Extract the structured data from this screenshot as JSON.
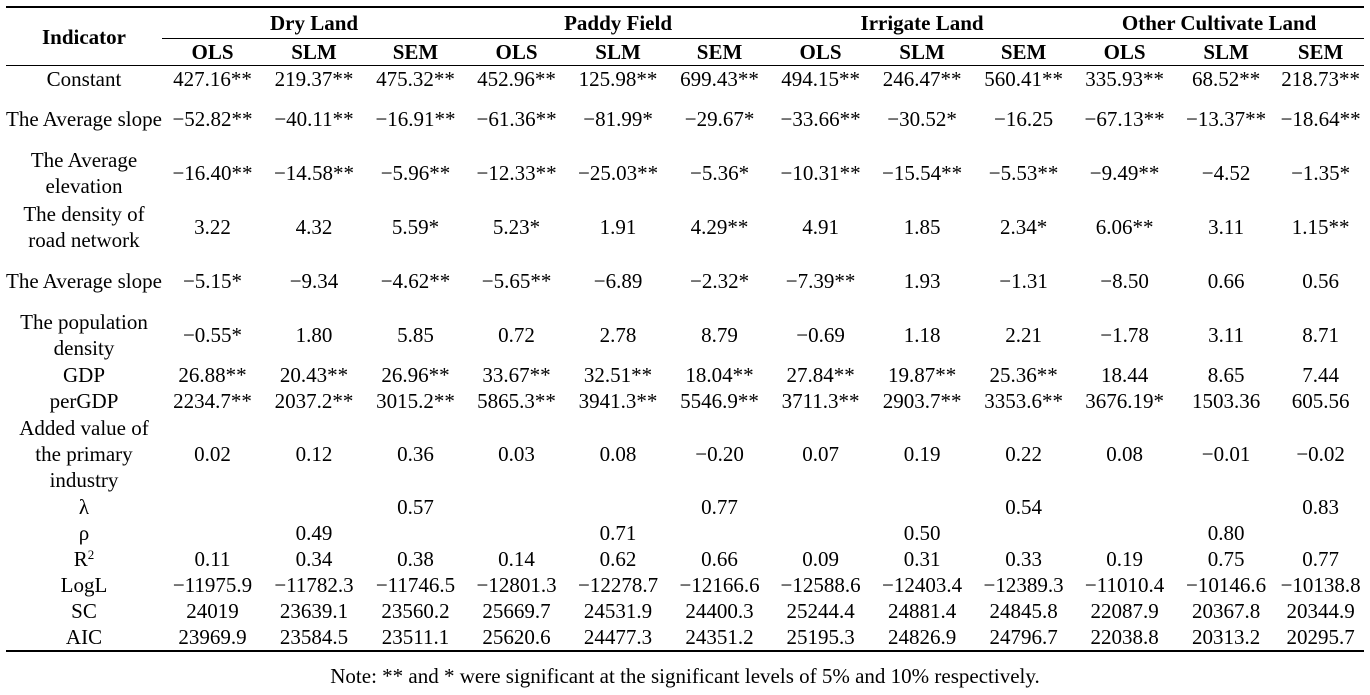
{
  "header": {
    "indicator": "Indicator",
    "groups": [
      "Dry Land",
      "Paddy Field",
      "Irrigate Land",
      "Other Cultivate Land"
    ],
    "methods": [
      "OLS",
      "SLM",
      "SEM"
    ]
  },
  "rows": [
    {
      "label": "Constant",
      "values": [
        "427.16**",
        "219.37**",
        "475.32**",
        "452.96**",
        "125.98**",
        "699.43**",
        "494.15**",
        "246.47**",
        "560.41**",
        "335.93**",
        "68.52**",
        "218.73**"
      ]
    },
    {
      "label": "The Average slope",
      "values": [
        "−52.82**",
        "−40.11**",
        "−16.91**",
        "−61.36**",
        "−81.99*",
        "−29.67*",
        "−33.66**",
        "−30.52*",
        "−16.25",
        "−67.13**",
        "−13.37**",
        "−18.64**"
      ]
    },
    {
      "label": "The Average elevation",
      "values": [
        "−16.40**",
        "−14.58**",
        "−5.96**",
        "−12.33**",
        "−25.03**",
        "−5.36*",
        "−10.31**",
        "−15.54**",
        "−5.53**",
        "−9.49**",
        "−4.52",
        "−1.35*"
      ]
    },
    {
      "label": "The density of road network",
      "values": [
        "3.22",
        "4.32",
        "5.59*",
        "5.23*",
        "1.91",
        "4.29**",
        "4.91",
        "1.85",
        "2.34*",
        "6.06**",
        "3.11",
        "1.15**"
      ]
    },
    {
      "label": "The Average slope",
      "values": [
        "−5.15*",
        "−9.34",
        "−4.62**",
        "−5.65**",
        "−6.89",
        "−2.32*",
        "−7.39**",
        "1.93",
        "−1.31",
        "−8.50",
        "0.66",
        "0.56"
      ]
    },
    {
      "label": "The population density",
      "values": [
        "−0.55*",
        "1.80",
        "5.85",
        "0.72",
        "2.78",
        "8.79",
        "−0.69",
        "1.18",
        "2.21",
        "−1.78",
        "3.11",
        "8.71"
      ]
    },
    {
      "label": "GDP",
      "values": [
        "26.88**",
        "20.43**",
        "26.96**",
        "33.67**",
        "32.51**",
        "18.04**",
        "27.84**",
        "19.87**",
        "25.36**",
        "18.44",
        "8.65",
        "7.44"
      ]
    },
    {
      "label": "perGDP",
      "values": [
        "2234.7**",
        "2037.2**",
        "3015.2**",
        "5865.3**",
        "3941.3**",
        "5546.9**",
        "3711.3**",
        "2903.7**",
        "3353.6**",
        "3676.19*",
        "1503.36",
        "605.56"
      ]
    },
    {
      "label": "Added value of the primary industry",
      "values": [
        "0.02",
        "0.12",
        "0.36",
        "0.03",
        "0.08",
        "−0.20",
        "0.07",
        "0.19",
        "0.22",
        "0.08",
        "−0.01",
        "−0.02"
      ]
    },
    {
      "label": "λ",
      "values": [
        "",
        "",
        "0.57",
        "",
        "",
        "0.77",
        "",
        "",
        "0.54",
        "",
        "",
        "0.83"
      ]
    },
    {
      "label": "ρ",
      "values": [
        "",
        "0.49",
        "",
        "",
        "0.71",
        "",
        "",
        "0.50",
        "",
        "",
        "0.80",
        ""
      ]
    },
    {
      "label": "R",
      "label_sup": "2",
      "values": [
        "0.11",
        "0.34",
        "0.38",
        "0.14",
        "0.62",
        "0.66",
        "0.09",
        "0.31",
        "0.33",
        "0.19",
        "0.75",
        "0.77"
      ]
    },
    {
      "label": "LogL",
      "values": [
        "−11975.9",
        "−11782.3",
        "−11746.5",
        "−12801.3",
        "−12278.7",
        "−12166.6",
        "−12588.6",
        "−12403.4",
        "−12389.3",
        "−11010.4",
        "−10146.6",
        "−10138.8"
      ]
    },
    {
      "label": "SC",
      "values": [
        "24019",
        "23639.1",
        "23560.2",
        "25669.7",
        "24531.9",
        "24400.3",
        "25244.4",
        "24881.4",
        "24845.8",
        "22087.9",
        "20367.8",
        "20344.9"
      ]
    },
    {
      "label": "AIC",
      "values": [
        "23969.9",
        "23584.5",
        "23511.1",
        "25620.6",
        "24477.3",
        "24351.2",
        "25195.3",
        "24826.9",
        "24796.7",
        "22038.8",
        "20313.2",
        "20295.7"
      ]
    }
  ],
  "note": "Note: ** and * were significant at the significant levels of 5% and 10% respectively."
}
